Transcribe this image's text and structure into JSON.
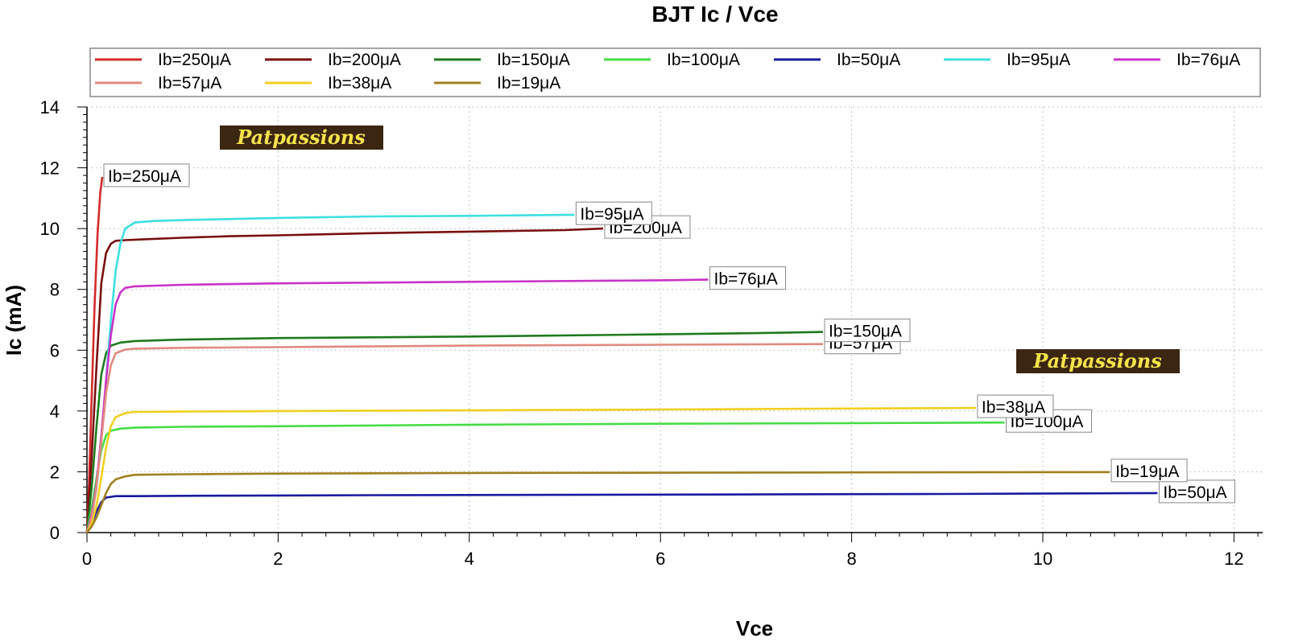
{
  "chart_data": {
    "type": "line",
    "title": "BJT Ic / Vce",
    "xlabel": "Vce",
    "ylabel": "Ic (mA)",
    "xlim": [
      0,
      12.3
    ],
    "ylim": [
      0,
      14
    ],
    "xticks": [
      0,
      2,
      4,
      6,
      8,
      10,
      12
    ],
    "yticks": [
      0,
      2,
      4,
      6,
      8,
      10,
      12,
      14
    ],
    "grid": true,
    "legend_position": "top",
    "watermark": "Patpassions",
    "series": [
      {
        "name": "Ib=250μA",
        "color": "#d42a2a",
        "label": "Ib=250μA",
        "x": [
          0,
          0.02,
          0.05,
          0.08,
          0.11,
          0.14,
          0.16
        ],
        "y": [
          0,
          1.5,
          4.5,
          7.5,
          9.8,
          11.2,
          11.7
        ]
      },
      {
        "name": "Ib=200μA",
        "color": "#7a0f0f",
        "label": "Ib=200μA",
        "x": [
          0,
          0.05,
          0.1,
          0.15,
          0.2,
          0.25,
          0.3,
          0.4,
          0.6,
          1,
          1.5,
          2,
          3,
          4,
          5,
          5.4
        ],
        "y": [
          0,
          2.5,
          5.5,
          8.2,
          9.2,
          9.5,
          9.6,
          9.62,
          9.65,
          9.7,
          9.75,
          9.78,
          9.85,
          9.9,
          9.95,
          10.0
        ]
      },
      {
        "name": "Ib=150μA",
        "color": "#1e7a1e",
        "label": "Ib=150μA",
        "x": [
          0,
          0.05,
          0.1,
          0.15,
          0.2,
          0.25,
          0.35,
          0.5,
          1,
          2,
          4,
          6,
          7,
          7.7
        ],
        "y": [
          0,
          1.5,
          3.5,
          5.2,
          5.9,
          6.15,
          6.25,
          6.3,
          6.35,
          6.4,
          6.45,
          6.52,
          6.56,
          6.6
        ]
      },
      {
        "name": "Ib=100μA",
        "color": "#44dd44",
        "label": "Ib=100μA",
        "x": [
          0,
          0.05,
          0.1,
          0.15,
          0.2,
          0.25,
          0.35,
          0.5,
          1,
          2,
          4,
          6,
          8,
          9.6
        ],
        "y": [
          0,
          0.8,
          1.8,
          2.7,
          3.2,
          3.35,
          3.42,
          3.45,
          3.48,
          3.5,
          3.55,
          3.58,
          3.6,
          3.62
        ]
      },
      {
        "name": "Ib=50μA",
        "color": "#1a1aa0",
        "label": "Ib=50μA",
        "x": [
          0,
          0.05,
          0.1,
          0.15,
          0.2,
          0.3,
          0.5,
          1,
          3,
          6,
          9,
          11.2
        ],
        "y": [
          0,
          0.3,
          0.7,
          1.0,
          1.15,
          1.2,
          1.2,
          1.21,
          1.23,
          1.25,
          1.27,
          1.3
        ]
      },
      {
        "name": "Ib=95μA",
        "color": "#3ee0e0",
        "label": "Ib=95μA",
        "x": [
          0,
          0.05,
          0.1,
          0.15,
          0.2,
          0.25,
          0.3,
          0.35,
          0.4,
          0.5,
          0.7,
          1,
          2,
          3,
          4,
          5,
          5.1
        ],
        "y": [
          0,
          0.5,
          1.5,
          3.0,
          5.0,
          7.0,
          8.6,
          9.5,
          10.0,
          10.2,
          10.25,
          10.28,
          10.35,
          10.4,
          10.42,
          10.45,
          10.45
        ]
      },
      {
        "name": "Ib=76μA",
        "color": "#c832c8",
        "label": "Ib=76μA",
        "x": [
          0,
          0.05,
          0.1,
          0.15,
          0.2,
          0.25,
          0.3,
          0.35,
          0.4,
          0.5,
          1,
          2,
          4,
          6,
          6.5
        ],
        "y": [
          0,
          0.6,
          1.6,
          3.2,
          5.0,
          6.5,
          7.5,
          7.9,
          8.05,
          8.1,
          8.15,
          8.2,
          8.25,
          8.3,
          8.32
        ]
      },
      {
        "name": "Ib=57μA",
        "color": "#e08a80",
        "label": "Ib=57μA",
        "x": [
          0,
          0.05,
          0.1,
          0.15,
          0.2,
          0.25,
          0.3,
          0.4,
          0.5,
          1,
          2,
          4,
          6,
          7.7
        ],
        "y": [
          0,
          0.5,
          1.5,
          3.0,
          4.6,
          5.5,
          5.9,
          6.02,
          6.05,
          6.08,
          6.1,
          6.15,
          6.18,
          6.2
        ]
      },
      {
        "name": "Ib=38μA",
        "color": "#f0d020",
        "label": "Ib=38μA",
        "x": [
          0,
          0.05,
          0.1,
          0.15,
          0.2,
          0.25,
          0.3,
          0.4,
          0.5,
          1,
          2,
          4,
          6,
          8,
          9.3
        ],
        "y": [
          0,
          0.3,
          0.9,
          1.8,
          2.8,
          3.5,
          3.8,
          3.93,
          3.97,
          3.98,
          4.0,
          4.02,
          4.05,
          4.08,
          4.1
        ]
      },
      {
        "name": "Ib=19μA",
        "color": "#a08020",
        "label": "Ib=19μA",
        "x": [
          0,
          0.05,
          0.1,
          0.15,
          0.2,
          0.25,
          0.3,
          0.4,
          0.5,
          1,
          2,
          4,
          6,
          8,
          10.7
        ],
        "y": [
          0,
          0.2,
          0.5,
          0.9,
          1.3,
          1.6,
          1.75,
          1.85,
          1.9,
          1.92,
          1.94,
          1.96,
          1.97,
          1.98,
          1.99
        ]
      }
    ]
  }
}
